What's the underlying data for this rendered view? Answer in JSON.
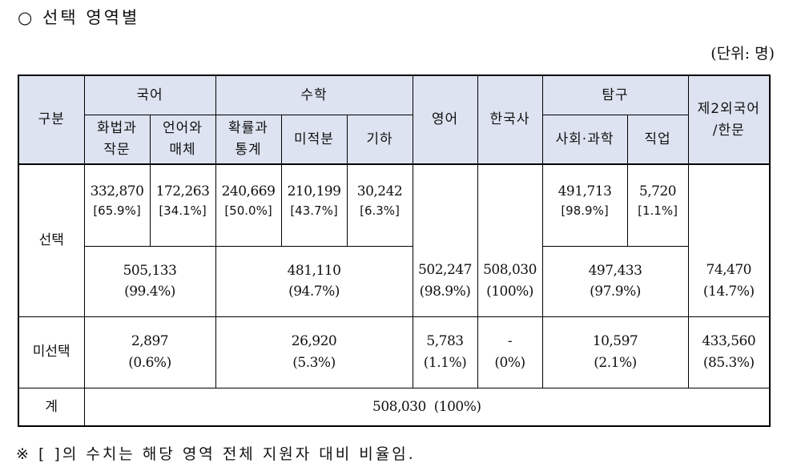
{
  "heading": "○ 선택 영역별",
  "unit": "(단위: 명)",
  "header": {
    "gubun": "구분",
    "korean": "국어",
    "math": "수학",
    "english": "영어",
    "history": "한국사",
    "inquiry": "탐구",
    "foreign": [
      "제2외국어",
      "/한문"
    ],
    "sub": {
      "korean_a": [
        "화법과",
        "작문"
      ],
      "korean_b": [
        "언어와",
        "매체"
      ],
      "math_a": [
        "확률과",
        "통계"
      ],
      "math_b": "미적분",
      "math_c": "기하",
      "inquiry_a": "사회·과학",
      "inquiry_b": "직업"
    }
  },
  "rows": {
    "select_label": "선택",
    "unselect_label": "미선택",
    "total_label": "계",
    "select_detail": {
      "korean_a": [
        "332,870",
        "[65.9%]"
      ],
      "korean_b": [
        "172,263",
        "[34.1%]"
      ],
      "math_a": [
        "240,669",
        "[50.0%]"
      ],
      "math_b": [
        "210,199",
        "[43.7%]"
      ],
      "math_c": [
        "30,242",
        "[6.3%]"
      ],
      "inquiry_a": [
        "491,713",
        "[98.9%]"
      ],
      "inquiry_b": [
        "5,720",
        "[1.1%]"
      ]
    },
    "select_total": {
      "korean": [
        "505,133",
        "(99.4%)"
      ],
      "math": [
        "481,110",
        "(94.7%)"
      ],
      "english": [
        "502,247",
        "(98.9%)"
      ],
      "history": [
        "508,030",
        "(100%)"
      ],
      "inquiry": [
        "497,433",
        "(97.9%)"
      ],
      "foreign": [
        "74,470",
        "(14.7%)"
      ]
    },
    "unselect": {
      "korean": [
        "2,897",
        "(0.6%)"
      ],
      "math": [
        "26,920",
        "(5.3%)"
      ],
      "english": [
        "5,783",
        "(1.1%)"
      ],
      "history": [
        "-",
        "(0%)"
      ],
      "inquiry": [
        "10,597",
        "(2.1%)"
      ],
      "foreign": [
        "433,560",
        "(85.3%)"
      ]
    },
    "total": "508,030  (100%)"
  },
  "note": "※ [ ]의 수치는 해당 영역 전체 지원자 대비 비율임."
}
